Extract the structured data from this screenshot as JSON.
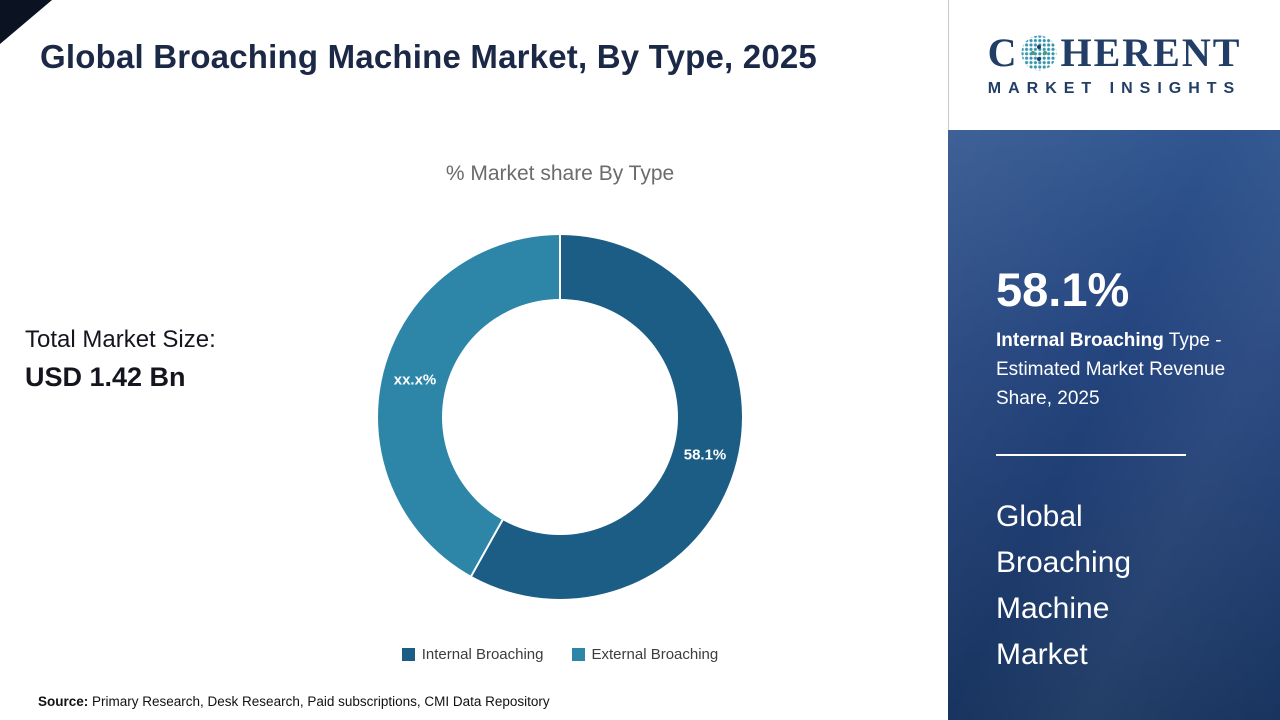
{
  "header": {
    "title": "Global Broaching Machine Market, By Type, 2025"
  },
  "chart_data": {
    "type": "pie",
    "donut": true,
    "title": "% Market share By Type",
    "categories": [
      "Internal Broaching",
      "External Broaching"
    ],
    "values": [
      58.1,
      41.9
    ],
    "slice_labels": [
      "58.1%",
      "xx.x%"
    ],
    "colors": [
      "#1c5d85",
      "#2d86a8"
    ],
    "legend_position": "bottom"
  },
  "total": {
    "label": "Total Market Size:",
    "value": "USD 1.42 Bn"
  },
  "sidebar": {
    "stat_value": "58.1%",
    "stat_desc_bold": "Internal Broaching",
    "stat_desc_rest": " Type - Estimated Market Revenue Share, 2025",
    "market_name": "Global Broaching Machine Market"
  },
  "logo": {
    "wordmark_prefix": "C",
    "wordmark_suffix": "HERENT",
    "subtitle": "MARKET INSIGHTS",
    "navy": "#223e66",
    "teal": "#3695ae"
  },
  "source": {
    "label": "Source:",
    "text": " Primary Research, Desk Research, Paid subscriptions, CMI Data Repository"
  }
}
